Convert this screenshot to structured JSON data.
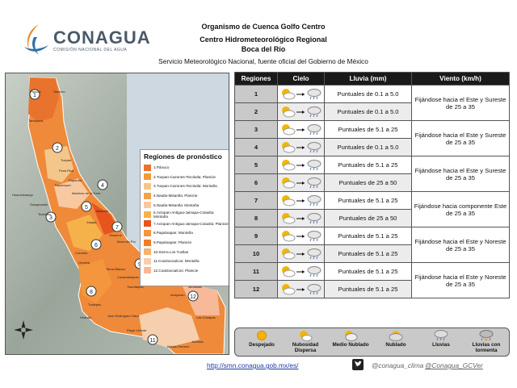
{
  "logo": {
    "word": "CONAGUA",
    "subtitle": "COMISIÓN NACIONAL DEL AGUA"
  },
  "header": {
    "line1": "Organismo de Cuenca Golfo Centro",
    "line2": "Centro Hidrometeorológico Regional",
    "line3": "Boca del Río",
    "line4": "Servicio Meteorológico Nacional, fuente oficial del Gobierno de México"
  },
  "legend": {
    "title": "Regiones de pronóstico",
    "items": [
      {
        "label": "1.Pánuco",
        "color": "#e9732c"
      },
      {
        "label": "2.Tuxpan-Cazones-Tecolutla: Planicie",
        "color": "#f09a38"
      },
      {
        "label": "3.Tuxpan-Cazones-Tecolutla: Montaña",
        "color": "#f5c68a"
      },
      {
        "label": "4.Nautla-Misantla: Planicie",
        "color": "#f2a24c"
      },
      {
        "label": "5.Nautla-Misantla: Montaña",
        "color": "#f8c9a0"
      },
      {
        "label": "6.Actopan-Antigua-Jamapa-Cotaxtla: Montaña",
        "color": "#f6b24a"
      },
      {
        "label": "7.Actopan-Antigua-Jamapa-Cotaxtla: Planicie",
        "color": "#e8541e"
      },
      {
        "label": "8.Papaloapan: Montaña",
        "color": "#f3963e"
      },
      {
        "label": "9.Papaloapan: Planicie",
        "color": "#ef7d2a"
      },
      {
        "label": "10.Sierra Los Tuxtlas",
        "color": "#f4b36e"
      },
      {
        "label": "11.Coatzacoalcos: Montaña",
        "color": "#f6cfae"
      },
      {
        "label": "12.Coatzacoalcos: Planicie",
        "color": "#f7b998"
      }
    ]
  },
  "map": {
    "places": [
      "Pánuco",
      "Tampico",
      "Tantoyuca",
      "Tuxpan",
      "Poza Rica",
      "Papantla",
      "Huauchinango",
      "Zacapoaxtla",
      "Teziutlán",
      "Martínez de la Torre",
      "Misantla",
      "Xalapa",
      "Veracruz",
      "Boca del Río",
      "Córdoba",
      "Orizaba",
      "Tierra Blanca",
      "Cosamaloapan",
      "Tlacotalpan",
      "Los Tuxtlas",
      "Coatzacoalcos",
      "Minatitlán",
      "Acayucan",
      "Juchitán",
      "Juan Rodríguez Clara",
      "Las Choapas",
      "Tuxtepec",
      "Huautla",
      "Matías Romero",
      "Playa Vicente",
      "Tlapacoyan"
    ]
  },
  "table": {
    "headers": [
      "Regiones",
      "Cielo",
      "Lluvia (mm)",
      "Viento (km/h)"
    ],
    "rows": [
      {
        "region": "1",
        "rain": "Puntuales de 0.1 a 5.0"
      },
      {
        "region": "2",
        "rain": "Puntuales de 0.1 a 5.0"
      },
      {
        "region": "3",
        "rain": "Puntuales de 5.1 a 25"
      },
      {
        "region": "4",
        "rain": "Puntuales de 0.1 a 5.0"
      },
      {
        "region": "5",
        "rain": "Puntuales de 5.1 a 25"
      },
      {
        "region": "6",
        "rain": "Puntuales de 25 a 50"
      },
      {
        "region": "7",
        "rain": "Puntuales de 5.1 a 25"
      },
      {
        "region": "8",
        "rain": "Puntuales de 25 a 50"
      },
      {
        "region": "9",
        "rain": "Puntuales de 5.1 a 25"
      },
      {
        "region": "10",
        "rain": "Puntuales de 5.1 a 25"
      },
      {
        "region": "11",
        "rain": "Puntuales de 5.1 a 25"
      },
      {
        "region": "12",
        "rain": "Puntuales de 5.1 a 25"
      }
    ],
    "wind": [
      "Fijándose hacia el Este y Sureste de 25 a 35",
      "Fijándose hacia el Este y Sureste de 25 a 35",
      "Fijándose hacia el Este y Sureste de 25 a 35",
      "Fijándose hacia componente Este de 25 a 35",
      "Fijándose hacia el Este y Noreste de 25 a 35",
      "Fijándose hacia el Este y Noreste de 25 a 35"
    ]
  },
  "sky_legend": {
    "items": [
      "Despejado",
      "Nubosidad Dispersa",
      "Medio Nublado",
      "Nublado",
      "Lluvias",
      "Lluvias con tormenta"
    ]
  },
  "footer": {
    "url": "http://smn.conagua.gob.mx/es/",
    "handle1": "@conagua_clima",
    "handle2": "@Conagua_GCVer"
  }
}
